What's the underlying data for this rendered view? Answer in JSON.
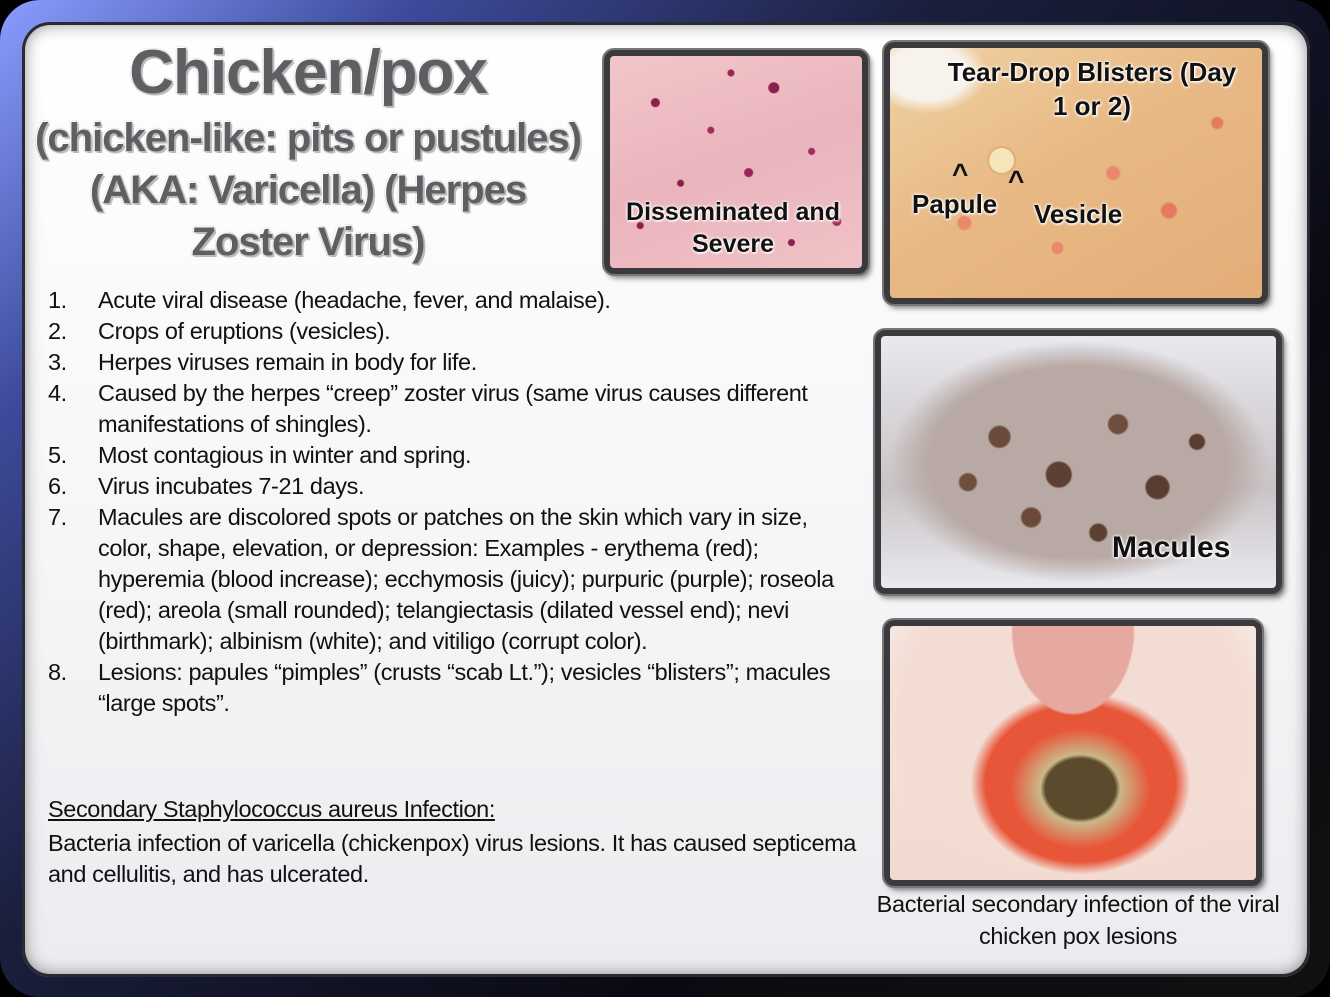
{
  "title": {
    "main": "Chicken/pox",
    "subtitle": "(chicken-like: pits or pustules) (AKA: Varicella) (Herpes Zoster Virus)"
  },
  "photos": {
    "disseminated": "Disseminated and Severe",
    "tear_drop": "Tear-Drop Blisters (Day 1 or 2)",
    "papule": "Papule",
    "vesicle": "Vesicle",
    "caret": "^",
    "macules": "Macules"
  },
  "list": [
    {
      "num": "1.",
      "text": "Acute viral disease (headache, fever, and malaise)."
    },
    {
      "num": "2.",
      "text": "Crops of eruptions (vesicles)."
    },
    {
      "num": "3.",
      "text": "Herpes viruses remain in body for life."
    },
    {
      "num": "4.",
      "text": "Caused by the herpes “creep” zoster virus (same virus causes different manifestations of shingles)."
    },
    {
      "num": "5.",
      "text": "Most contagious in winter and spring."
    },
    {
      "num": "6.",
      "text": "Virus incubates 7-21 days."
    },
    {
      "num": "7.",
      "text": "Macules are discolored spots or patches on the skin which vary in size, color, shape, elevation, or depression: Examples - erythema (red); hyperemia (blood increase); ecchymosis (juicy); purpuric (purple); roseola (red); areola (small rounded); telangiectasis (dilated vessel end); nevi (birthmark); albinism (white); and vitiligo (corrupt color)."
    },
    {
      "num": "8.",
      "text": "Lesions: papules “pimples” (crusts “scab Lt.”); vesicles “blisters”; macules “large spots”."
    }
  ],
  "secondary": {
    "heading": "Secondary Staphylococcus aureus Infection:",
    "body": "Bacteria infection of varicella (chickenpox) virus lesions. It has caused septicema and cellulitis, and has ulcerated."
  },
  "caption": "Bacterial secondary infection of the viral chicken pox lesions"
}
